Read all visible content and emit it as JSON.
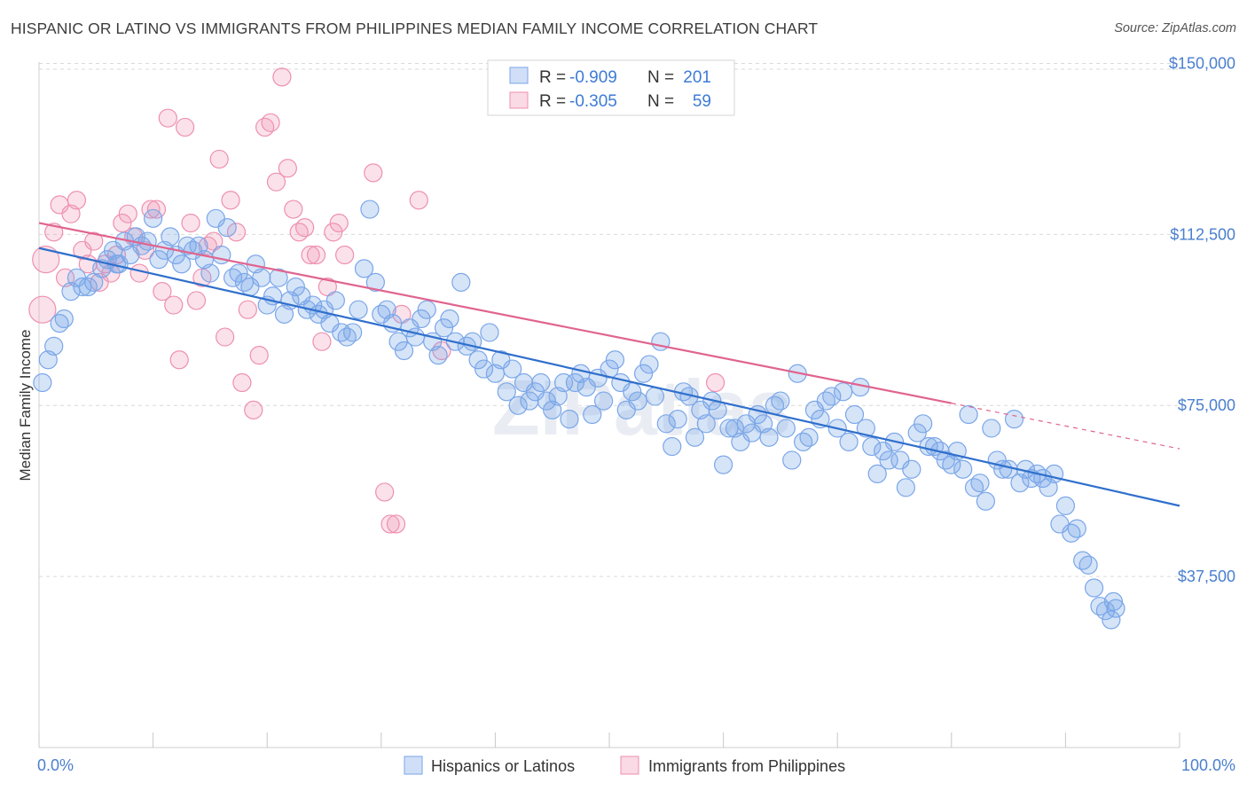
{
  "title": "HISPANIC OR LATINO VS IMMIGRANTS FROM PHILIPPINES MEDIAN FAMILY INCOME CORRELATION CHART",
  "source": "Source: ZipAtlas.com",
  "watermark": "ZIPatlas",
  "colors": {
    "blue": "#7aa6e8",
    "blue_fill": "rgba(120,164,232,0.30)",
    "blue_line": "#2f6fcc",
    "pink": "#ee8fb0",
    "pink_fill": "rgba(240,150,180,0.28)",
    "pink_line": "#e0648f",
    "axis_text": "#4a7fcf"
  },
  "legend": {
    "rows": [
      {
        "r_label": "R =",
        "r_value": "-0.909",
        "n_label": "N =",
        "n_value": "201",
        "series": "blue"
      },
      {
        "r_label": "R =",
        "r_value": "-0.305",
        "n_label": "N =",
        "n_value": "59",
        "series": "pink"
      }
    ]
  },
  "bottom_legend": [
    {
      "label": "Hispanics or Latinos",
      "series": "blue"
    },
    {
      "label": "Immigrants from Philippines",
      "series": "pink"
    }
  ],
  "chart_data": {
    "type": "scatter",
    "ylabel": "Median Family Income",
    "xlim": [
      0,
      100
    ],
    "ylim": [
      0,
      160000
    ],
    "x_tick_labels": {
      "left": "0.0%",
      "right": "100.0%"
    },
    "y_ticks": [
      {
        "value": 150000,
        "label": "$150,000"
      },
      {
        "value": 112500,
        "label": "$112,500"
      },
      {
        "value": 75000,
        "label": "$75,000"
      },
      {
        "value": 37500,
        "label": "$37,500"
      }
    ],
    "legend_position": "top-center",
    "grid": true,
    "series": [
      {
        "name": "Hispanics or Latinos",
        "color": "blue",
        "trend": {
          "x": [
            0,
            100
          ],
          "y": [
            109500,
            53000
          ]
        },
        "points": [
          [
            0.3,
            80000
          ],
          [
            0.8,
            85000
          ],
          [
            1.3,
            88000
          ],
          [
            1.8,
            93000
          ],
          [
            2.2,
            94000
          ],
          [
            2.8,
            100000
          ],
          [
            3.3,
            103000
          ],
          [
            3.8,
            101000
          ],
          [
            4.3,
            101000
          ],
          [
            4.8,
            102000
          ],
          [
            5.5,
            105000
          ],
          [
            6,
            107000
          ],
          [
            6.5,
            109000
          ],
          [
            7,
            106000
          ],
          [
            7.5,
            111000
          ],
          [
            8,
            108000
          ],
          [
            8.5,
            112000
          ],
          [
            9,
            110000
          ],
          [
            9.5,
            111000
          ],
          [
            10,
            116000
          ],
          [
            10.5,
            107000
          ],
          [
            11,
            109000
          ],
          [
            11.5,
            112000
          ],
          [
            12,
            108000
          ],
          [
            12.5,
            106000
          ],
          [
            13,
            110000
          ],
          [
            13.5,
            109000
          ],
          [
            14,
            110000
          ],
          [
            14.5,
            107000
          ],
          [
            15,
            104000
          ],
          [
            15.5,
            116000
          ],
          [
            16,
            108000
          ],
          [
            16.5,
            114000
          ],
          [
            17,
            103000
          ],
          [
            17.5,
            104000
          ],
          [
            18,
            102000
          ],
          [
            18.5,
            101000
          ],
          [
            19,
            106000
          ],
          [
            19.5,
            103000
          ],
          [
            20,
            97000
          ],
          [
            20.5,
            99000
          ],
          [
            21,
            103000
          ],
          [
            21.5,
            95000
          ],
          [
            22,
            98000
          ],
          [
            22.5,
            101000
          ],
          [
            23,
            99000
          ],
          [
            23.5,
            96000
          ],
          [
            24,
            97000
          ],
          [
            24.5,
            95000
          ],
          [
            25,
            96000
          ],
          [
            25.5,
            93000
          ],
          [
            26,
            98000
          ],
          [
            26.5,
            91000
          ],
          [
            27,
            90000
          ],
          [
            27.5,
            91000
          ],
          [
            28,
            96000
          ],
          [
            28.5,
            105000
          ],
          [
            29,
            118000
          ],
          [
            29.5,
            102000
          ],
          [
            30,
            95000
          ],
          [
            30.5,
            96000
          ],
          [
            31,
            93000
          ],
          [
            31.5,
            89000
          ],
          [
            32,
            87000
          ],
          [
            32.5,
            92000
          ],
          [
            33,
            90000
          ],
          [
            33.5,
            94000
          ],
          [
            34,
            96000
          ],
          [
            34.5,
            89000
          ],
          [
            35,
            86000
          ],
          [
            35.5,
            92000
          ],
          [
            36,
            94000
          ],
          [
            36.5,
            89000
          ],
          [
            37,
            102000
          ],
          [
            37.5,
            88000
          ],
          [
            38,
            89000
          ],
          [
            38.5,
            85000
          ],
          [
            39,
            83000
          ],
          [
            39.5,
            91000
          ],
          [
            40,
            82000
          ],
          [
            40.5,
            85000
          ],
          [
            41,
            78000
          ],
          [
            41.5,
            83000
          ],
          [
            42,
            75000
          ],
          [
            42.5,
            80000
          ],
          [
            43,
            76000
          ],
          [
            43.5,
            78000
          ],
          [
            44,
            80000
          ],
          [
            44.5,
            76000
          ],
          [
            45,
            74000
          ],
          [
            45.5,
            77000
          ],
          [
            46,
            80000
          ],
          [
            46.5,
            72000
          ],
          [
            47,
            80000
          ],
          [
            47.5,
            82000
          ],
          [
            48,
            79000
          ],
          [
            48.5,
            73000
          ],
          [
            49,
            81000
          ],
          [
            49.5,
            76000
          ],
          [
            50,
            83000
          ],
          [
            50.5,
            85000
          ],
          [
            51,
            80000
          ],
          [
            51.5,
            74000
          ],
          [
            52,
            78000
          ],
          [
            52.5,
            76000
          ],
          [
            53,
            82000
          ],
          [
            53.5,
            84000
          ],
          [
            54,
            77000
          ],
          [
            54.5,
            89000
          ],
          [
            55,
            71000
          ],
          [
            55.5,
            66000
          ],
          [
            56,
            72000
          ],
          [
            56.5,
            78000
          ],
          [
            57,
            77000
          ],
          [
            57.5,
            68000
          ],
          [
            58,
            74000
          ],
          [
            58.5,
            71000
          ],
          [
            59,
            76000
          ],
          [
            59.5,
            74000
          ],
          [
            60,
            62000
          ],
          [
            60.5,
            70000
          ],
          [
            61,
            70000
          ],
          [
            61.5,
            67000
          ],
          [
            62,
            71000
          ],
          [
            62.5,
            69000
          ],
          [
            63,
            73000
          ],
          [
            63.5,
            71000
          ],
          [
            64,
            68000
          ],
          [
            64.5,
            75000
          ],
          [
            65,
            76000
          ],
          [
            65.5,
            70000
          ],
          [
            66,
            63000
          ],
          [
            66.5,
            82000
          ],
          [
            67,
            67000
          ],
          [
            67.5,
            68000
          ],
          [
            68,
            74000
          ],
          [
            68.5,
            72000
          ],
          [
            69,
            76000
          ],
          [
            69.5,
            77000
          ],
          [
            70,
            70000
          ],
          [
            70.5,
            78000
          ],
          [
            71,
            67000
          ],
          [
            71.5,
            73000
          ],
          [
            72,
            79000
          ],
          [
            72.5,
            70000
          ],
          [
            73,
            66000
          ],
          [
            73.5,
            60000
          ],
          [
            74,
            65000
          ],
          [
            74.5,
            63000
          ],
          [
            75,
            67000
          ],
          [
            75.5,
            63000
          ],
          [
            76,
            57000
          ],
          [
            76.5,
            61000
          ],
          [
            77,
            69000
          ],
          [
            77.5,
            71000
          ],
          [
            78,
            66000
          ],
          [
            78.5,
            66000
          ],
          [
            79,
            65000
          ],
          [
            79.5,
            63000
          ],
          [
            80,
            62000
          ],
          [
            80.5,
            65000
          ],
          [
            81,
            61000
          ],
          [
            81.5,
            73000
          ],
          [
            82,
            57000
          ],
          [
            82.5,
            58000
          ],
          [
            83,
            54000
          ],
          [
            83.5,
            70000
          ],
          [
            84,
            63000
          ],
          [
            84.5,
            61000
          ],
          [
            85,
            61000
          ],
          [
            85.5,
            72000
          ],
          [
            86,
            58000
          ],
          [
            86.5,
            61000
          ],
          [
            87,
            59000
          ],
          [
            87.5,
            60000
          ],
          [
            88,
            59000
          ],
          [
            88.5,
            57000
          ],
          [
            89,
            60000
          ],
          [
            89.5,
            49000
          ],
          [
            90,
            53000
          ],
          [
            90.5,
            47000
          ],
          [
            91,
            48000
          ],
          [
            91.5,
            41000
          ],
          [
            92,
            40000
          ],
          [
            92.5,
            35000
          ],
          [
            93,
            31000
          ],
          [
            93.5,
            30000
          ],
          [
            94,
            28000
          ],
          [
            94.2,
            32000
          ],
          [
            94.4,
            30500
          ],
          [
            6.8,
            106000
          ]
        ]
      },
      {
        "name": "Immigrants from Philippines",
        "color": "pink",
        "trend": {
          "x": [
            0,
            80
          ],
          "y": [
            115000,
            75500
          ]
        },
        "trend_dashed": {
          "x": [
            80,
            100
          ],
          "y": [
            75500,
            65500
          ]
        },
        "points": [
          [
            0.3,
            96000,
            "big"
          ],
          [
            0.6,
            107000,
            "big"
          ],
          [
            1.3,
            113000
          ],
          [
            1.8,
            119000
          ],
          [
            2.3,
            103000
          ],
          [
            2.8,
            117000
          ],
          [
            3.3,
            120000
          ],
          [
            3.8,
            109000
          ],
          [
            4.3,
            106000
          ],
          [
            4.8,
            111000
          ],
          [
            5.3,
            102000
          ],
          [
            5.8,
            106000
          ],
          [
            6.3,
            104000
          ],
          [
            6.8,
            108000
          ],
          [
            7.3,
            115000
          ],
          [
            7.8,
            117000
          ],
          [
            8.3,
            112000
          ],
          [
            8.8,
            104000
          ],
          [
            9.3,
            109000
          ],
          [
            9.8,
            118000
          ],
          [
            10.3,
            118000
          ],
          [
            10.8,
            100000
          ],
          [
            11.3,
            138000
          ],
          [
            11.8,
            97000
          ],
          [
            12.3,
            85000
          ],
          [
            12.8,
            136000
          ],
          [
            13.3,
            115000
          ],
          [
            13.8,
            98000
          ],
          [
            14.3,
            103000
          ],
          [
            14.8,
            110000
          ],
          [
            15.3,
            111000
          ],
          [
            15.8,
            129000
          ],
          [
            16.3,
            90000
          ],
          [
            16.8,
            120000
          ],
          [
            17.3,
            113000
          ],
          [
            17.8,
            80000
          ],
          [
            18.3,
            96000
          ],
          [
            18.8,
            74000
          ],
          [
            19.3,
            86000
          ],
          [
            19.8,
            136000
          ],
          [
            20.3,
            137000
          ],
          [
            20.8,
            124000
          ],
          [
            21.3,
            147000
          ],
          [
            21.8,
            127000
          ],
          [
            22.3,
            118000
          ],
          [
            22.8,
            113000
          ],
          [
            23.3,
            114000
          ],
          [
            23.8,
            108000
          ],
          [
            24.3,
            108000
          ],
          [
            24.8,
            89000
          ],
          [
            25.3,
            101000
          ],
          [
            25.8,
            113000
          ],
          [
            26.3,
            115000
          ],
          [
            26.8,
            108000
          ],
          [
            29.3,
            126000
          ],
          [
            30.3,
            56000
          ],
          [
            30.8,
            49000
          ],
          [
            31.3,
            49000
          ],
          [
            33.3,
            120000
          ],
          [
            35.3,
            87000
          ],
          [
            59.3,
            80000
          ],
          [
            31.8,
            95000
          ]
        ]
      }
    ]
  }
}
